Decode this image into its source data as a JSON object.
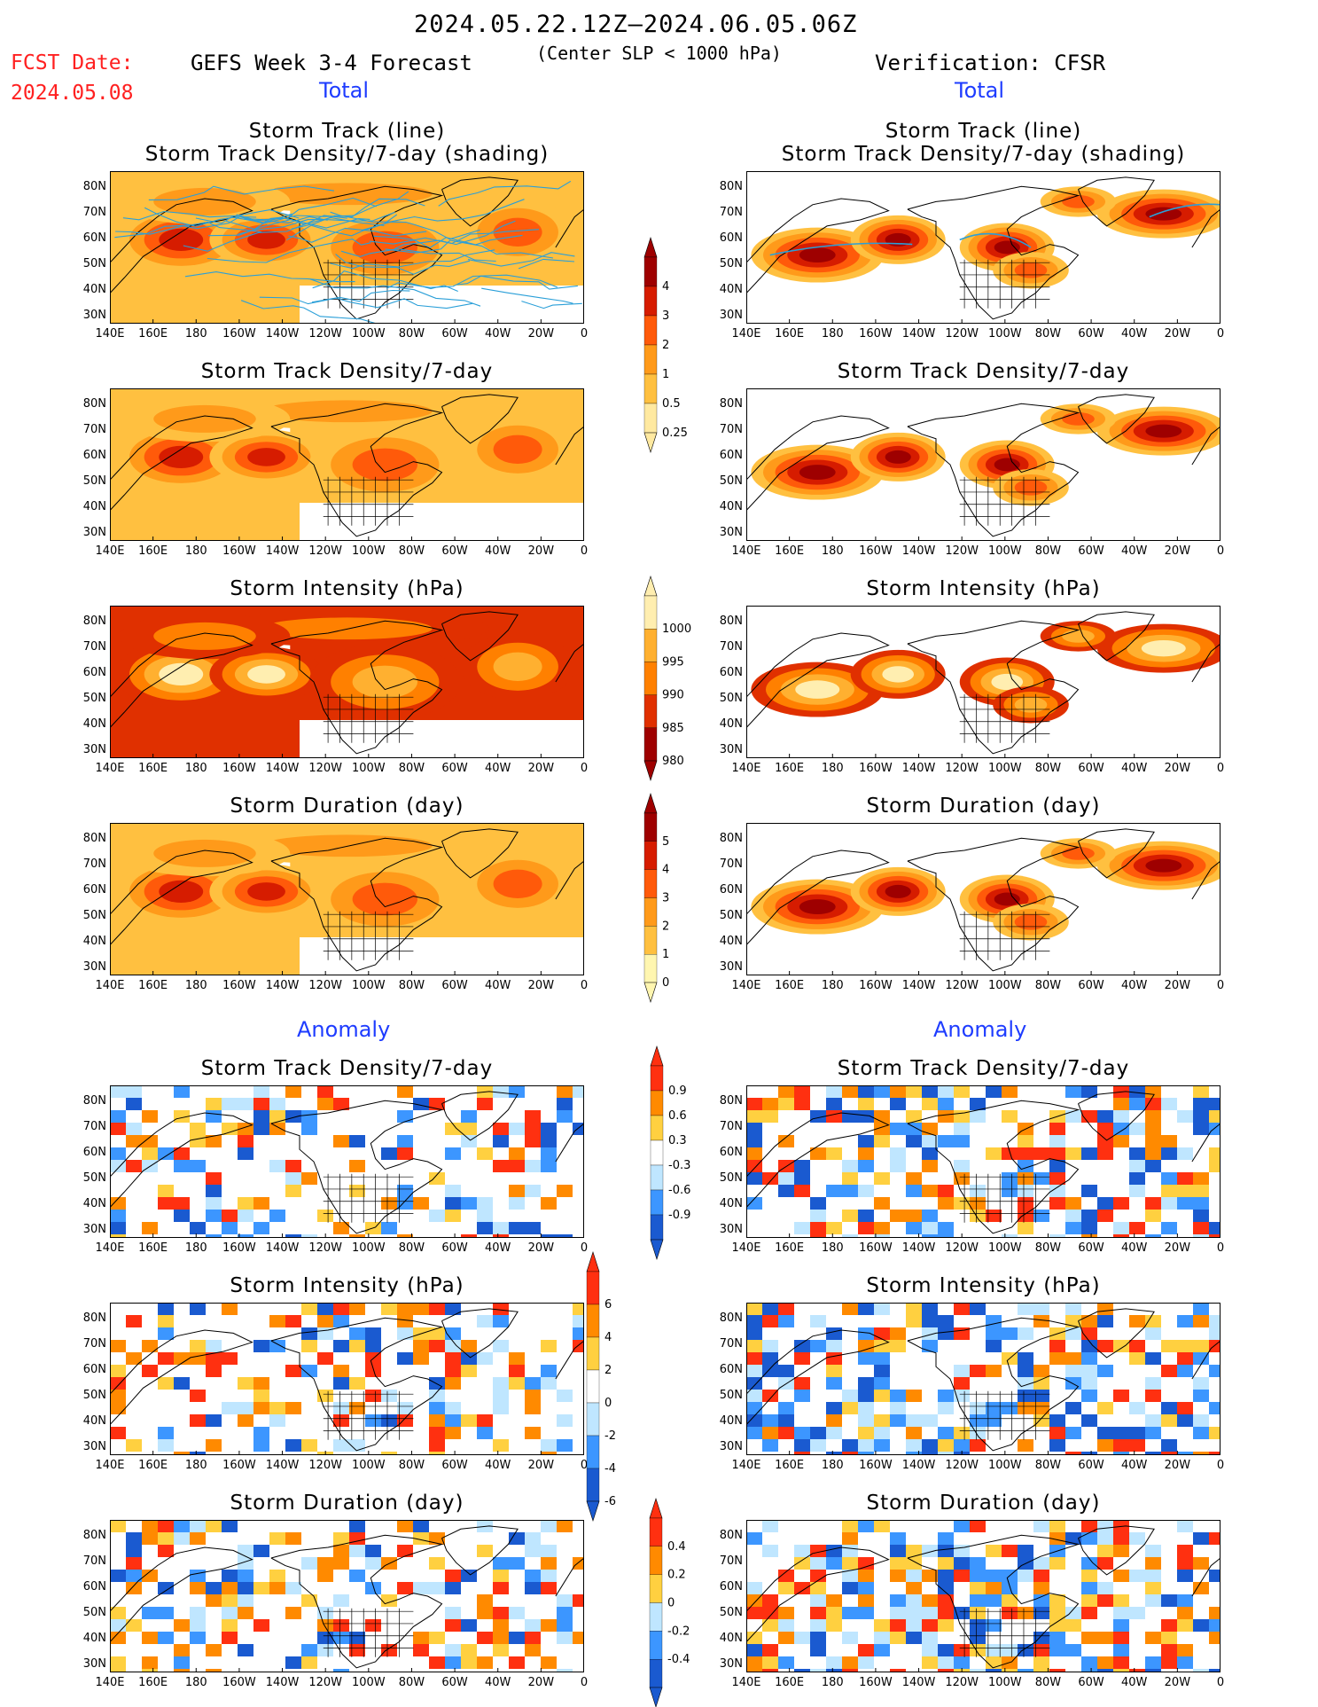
{
  "header": {
    "date_range": "2024.05.22.12Z–2024.06.05.06Z",
    "subtitle": "(Center SLP < 1000 hPa)",
    "fcst_label": "FCST Date:",
    "fcst_date": "2024.05.08",
    "forecast_title": "GEFS Week 3-4 Forecast",
    "verification": "Verification: CFSR",
    "total_label": "Total",
    "anomaly_label": "Anomaly"
  },
  "panel_titles": {
    "track_line": "Storm Track (line)",
    "track_shading": "Storm Track Density/7-day (shading)",
    "density": "Storm Track Density/7-day",
    "intensity": "Storm Intensity (hPa)",
    "duration": "Storm Duration (day)"
  },
  "lat_labels": [
    "80N",
    "70N",
    "60N",
    "50N",
    "40N",
    "30N"
  ],
  "lon_labels": [
    "140E",
    "160E",
    "180",
    "160W",
    "140W",
    "120W",
    "100W",
    "80W",
    "60W",
    "40W",
    "20W",
    "0"
  ],
  "colorbars": {
    "density": {
      "labels": [
        "4",
        "3",
        "2",
        "1",
        "0.5",
        "0.25"
      ],
      "colors": [
        "#9e0000",
        "#d61c00",
        "#ff5a0a",
        "#ff9a1a",
        "#ffc040",
        "#ffe9a0"
      ]
    },
    "intensity": {
      "labels": [
        "1000",
        "995",
        "990",
        "985",
        "980"
      ],
      "colors": [
        "#ffeeb0",
        "#ffb030",
        "#ff8000",
        "#e03000",
        "#9e0000"
      ]
    },
    "duration": {
      "labels": [
        "5",
        "4",
        "3",
        "2",
        "1",
        "0"
      ],
      "colors": [
        "#9e0000",
        "#d61c00",
        "#ff5a0a",
        "#ff9a1a",
        "#ffc040",
        "#fff6b0"
      ]
    },
    "density_anom": {
      "labels": [
        "0.9",
        "0.6",
        "0.3",
        "-0.3",
        "-0.6",
        "-0.9"
      ],
      "colors": [
        "#ff3010",
        "#ff8a00",
        "#ffd040",
        "#ffffff",
        "#bfe6ff",
        "#3c96ff",
        "#1a5ad0"
      ]
    },
    "intensity_anom": {
      "labels": [
        "6",
        "4",
        "2",
        "0",
        "-2",
        "-4",
        "-6"
      ],
      "colors": [
        "#ff3010",
        "#ff8a00",
        "#ffd040",
        "#ffffff",
        "#bfe6ff",
        "#3c96ff",
        "#1a5ad0"
      ]
    },
    "duration_anom": {
      "labels": [
        "0.4",
        "0.2",
        "0",
        "-0.2",
        "-0.4"
      ],
      "colors": [
        "#ff3010",
        "#ff8a00",
        "#ffd040",
        "#bfe6ff",
        "#3c96ff",
        "#1a5ad0"
      ]
    }
  }
}
